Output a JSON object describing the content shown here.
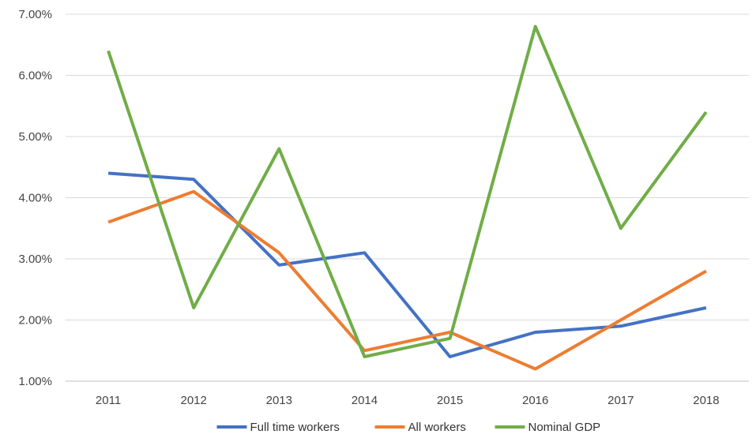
{
  "chart_data": {
    "type": "line",
    "title": "",
    "xlabel": "",
    "ylabel": "",
    "categories": [
      "2011",
      "2012",
      "2013",
      "2014",
      "2015",
      "2016",
      "2017",
      "2018"
    ],
    "ylim": [
      1.0,
      7.0
    ],
    "yticks": [
      1.0,
      2.0,
      3.0,
      4.0,
      5.0,
      6.0,
      7.0
    ],
    "ytick_labels": [
      "1.00%",
      "2.00%",
      "3.00%",
      "4.00%",
      "5.00%",
      "6.00%",
      "7.00%"
    ],
    "grid": "horizontal",
    "legend_position": "bottom",
    "series": [
      {
        "name": "Full time workers",
        "color": "#4472C4",
        "values": [
          4.4,
          4.3,
          2.9,
          3.1,
          1.4,
          1.8,
          1.9,
          2.2
        ]
      },
      {
        "name": "All workers",
        "color": "#ED7D31",
        "values": [
          3.6,
          4.1,
          3.1,
          1.5,
          1.8,
          1.2,
          2.0,
          2.8
        ]
      },
      {
        "name": "Nominal GDP",
        "color": "#70AD47",
        "values": [
          6.4,
          2.2,
          4.8,
          1.4,
          1.7,
          6.8,
          3.5,
          5.4
        ]
      }
    ]
  }
}
